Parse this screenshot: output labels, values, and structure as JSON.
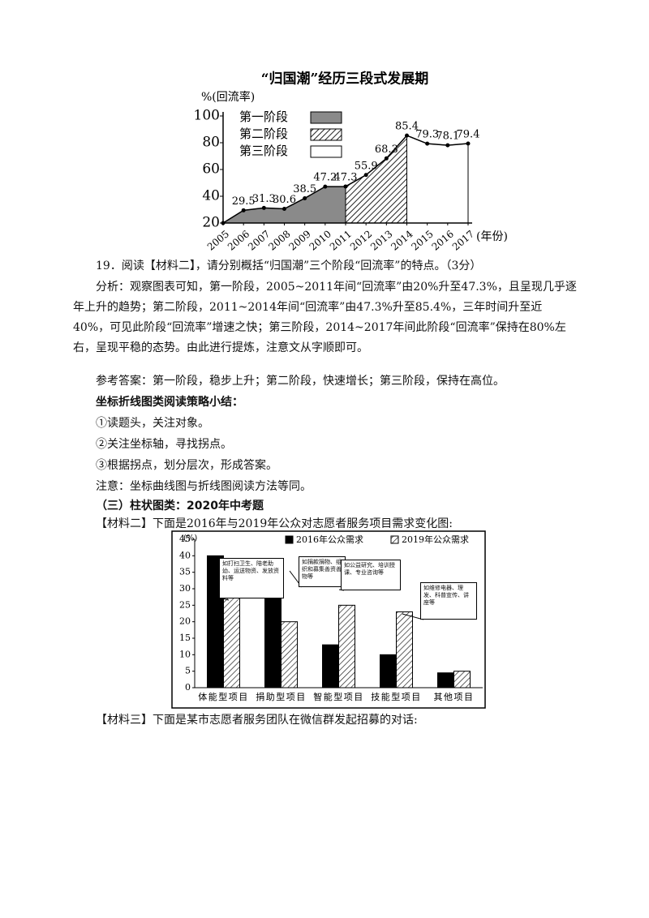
{
  "chart_data": [
    {
      "type": "area",
      "title": "“归国潮”经历三段式发展期",
      "y_label": "%(回流率)",
      "x_label": "(年份)",
      "x": [
        2005,
        2006,
        2007,
        2008,
        2009,
        2010,
        2011,
        2012,
        2013,
        2014,
        2015,
        2016,
        2017
      ],
      "values": [
        20,
        29.5,
        31.3,
        30.6,
        38.5,
        47.2,
        47.3,
        55.9,
        68.3,
        85.4,
        79.3,
        78.1,
        79.4
      ],
      "value_labels": [
        null,
        "29.5",
        "31.3",
        "30.6",
        "38.5",
        "47.2",
        "47.3",
        "55.9",
        "68.3",
        "85.4",
        "79.3",
        "78.1",
        "79.4"
      ],
      "xlim": [
        2005,
        2017
      ],
      "xticks": [
        2005,
        2006,
        2007,
        2008,
        2009,
        2010,
        2011,
        2012,
        2013,
        2014,
        2015,
        2016,
        2017
      ],
      "ylim": [
        20,
        100
      ],
      "yticks": [
        20,
        40,
        60,
        80,
        100
      ],
      "phases": [
        {
          "name": "第一阶段",
          "color": "#8a8a8a",
          "hatch": false,
          "range": [
            2005,
            2011
          ]
        },
        {
          "name": "第二阶段",
          "color": "#333333",
          "hatch": true,
          "range": [
            2011,
            2014
          ]
        },
        {
          "name": "第三阶段",
          "color": "#ffffff",
          "hatch": false,
          "range": [
            2014,
            2017
          ]
        }
      ],
      "line_color": "#000000"
    },
    {
      "type": "bar",
      "y_label": "(%)",
      "categories": [
        "体能型项目",
        "捐助型项目",
        "智能型项目",
        "技能型项目",
        "其他项目"
      ],
      "series": [
        {
          "name": "2016年公众需求",
          "color": "#000000",
          "hatch": false,
          "values": [
            40,
            37,
            13,
            10,
            4.5
          ]
        },
        {
          "name": "2019年公众需求",
          "color": "#000000",
          "hatch": true,
          "values": [
            28,
            20,
            25,
            23,
            5
          ]
        }
      ],
      "ylim": [
        0,
        45
      ],
      "yticks": [
        0,
        5,
        10,
        15,
        20,
        25,
        30,
        35,
        40,
        45
      ],
      "annotations": [
        "如打扫卫生、陪老助幼、运送物资、发放资料等",
        "如捐款捐物、组织和募集善资善物等",
        "如公益研究、培训授课、专业咨询等",
        "如维修电器、理发、科普宣传、讲座等"
      ]
    }
  ],
  "document": {
    "question": "19．阅读【材料二】，请分别概括“归国潮”三个阶段“回流率”的特点。（3分）",
    "analysis": "分析：观察图表可知，第一阶段，2005~2011年间“回流率”由20%升至47.3%，且呈现几乎逐年上升的趋势；第二阶段，2011~2014年间“回流率”由47.3%升至85.4%，三年时间升至近40%，可见此阶段“回流率”增速之快；第三阶段，2014~2017年间此阶段“回流率”保持在80%左右，呈现平稳的态势。由此进行提炼，注意文从字顺即可。",
    "answer": "参考答案：第一阶段，稳步上升；第二阶段，快速增长；第三阶段，保持在高位。",
    "summary_title": "坐标折线图类阅读策略小结：",
    "summary_items": [
      "①读题头，关注对象。",
      "②关注坐标轴，寻找拐点。",
      "③根据拐点，划分层次，形成答案。"
    ],
    "note": "注意：坐标曲线图与折线图阅读方法等同。",
    "section_title": "（三）柱状图类：2020年中考题",
    "material2": "【材料二】下面是2016年与2019年公众对志愿者服务项目需求变化图:",
    "material3": "【材料三】下面是某市志愿者服务团队在微信群发起招募的对话:"
  }
}
